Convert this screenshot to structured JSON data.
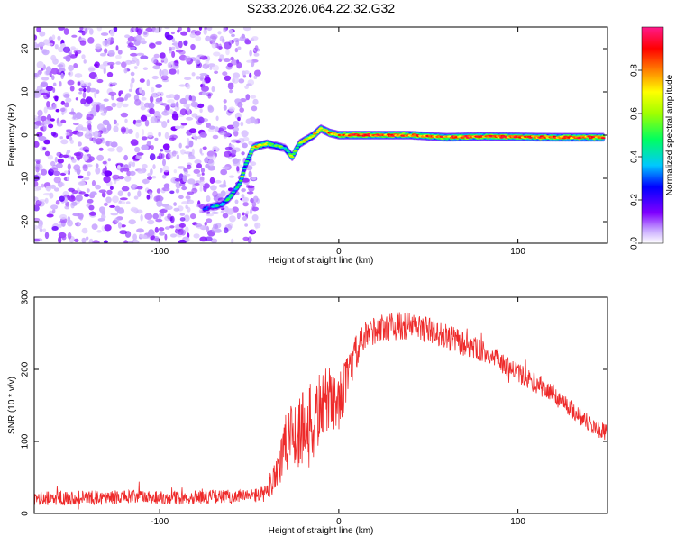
{
  "title": "S233.2026.064.22.32.G32",
  "chart_data": [
    {
      "type": "heatmap",
      "title": "S233.2026.064.22.32.G32",
      "xlabel": "Height of straight line (km)",
      "ylabel": "Frequency (Hz)",
      "xlim": [
        -170,
        150
      ],
      "ylim": [
        -25,
        25
      ],
      "x_ticks": [
        -100,
        0,
        100
      ],
      "y_ticks": [
        -20,
        -10,
        0,
        10,
        20
      ],
      "noise_region_x": [
        -170,
        -45
      ],
      "ridge": {
        "x": [
          -75,
          -70,
          -65,
          -60,
          -55,
          -52,
          -50,
          -48,
          -45,
          -40,
          -35,
          -30,
          -26,
          -22,
          -18,
          -14,
          -10,
          -5,
          0,
          10,
          20,
          40,
          60,
          80,
          100,
          120,
          148
        ],
        "y": [
          -17,
          -16.5,
          -16,
          -14,
          -11,
          -7,
          -5,
          -3,
          -2.5,
          -2,
          -2.5,
          -3,
          -5,
          -2,
          -1,
          0,
          1.5,
          0.5,
          0,
          0,
          0,
          0,
          -0.5,
          -0.3,
          -0.4,
          -0.5,
          -0.5
        ],
        "amplitude": [
          0.25,
          0.35,
          0.4,
          0.45,
          0.5,
          0.5,
          0.55,
          0.6,
          0.85,
          0.6,
          0.55,
          0.5,
          0.55,
          0.6,
          0.7,
          0.75,
          0.7,
          0.8,
          0.8,
          0.95,
          0.9,
          0.85,
          0.85,
          0.9,
          0.9,
          0.85,
          0.9
        ]
      },
      "colorbar": {
        "label": "Normalized spectral amplitude",
        "range": [
          0,
          1
        ],
        "ticks": [
          0.0,
          0.2,
          0.4,
          0.6,
          0.8
        ]
      }
    },
    {
      "type": "line",
      "xlabel": "Height of straight line (km)",
      "ylabel": "SNR (10 * v/v)",
      "xlim": [
        -170,
        150
      ],
      "ylim": [
        0,
        300
      ],
      "x_ticks": [
        -100,
        0,
        100
      ],
      "y_ticks": [
        0,
        100,
        200,
        300
      ],
      "color": "#ee2a2a",
      "series": [
        {
          "name": "SNR",
          "x": [
            -170,
            -150,
            -130,
            -110,
            -90,
            -70,
            -50,
            -40,
            -35,
            -30,
            -25,
            -20,
            -15,
            -10,
            -5,
            0,
            5,
            10,
            15,
            20,
            30,
            40,
            50,
            60,
            70,
            80,
            90,
            100,
            110,
            120,
            130,
            140,
            150
          ],
          "y": [
            20,
            22,
            22,
            23,
            22,
            23,
            24,
            28,
            60,
            90,
            115,
            120,
            120,
            150,
            160,
            155,
            190,
            225,
            245,
            255,
            260,
            260,
            255,
            245,
            235,
            225,
            210,
            195,
            180,
            165,
            145,
            125,
            110
          ],
          "noise": [
            10,
            10,
            10,
            10,
            10,
            10,
            10,
            12,
            35,
            45,
            55,
            60,
            60,
            50,
            45,
            40,
            30,
            25,
            22,
            20,
            20,
            20,
            18,
            18,
            18,
            15,
            15,
            14,
            14,
            14,
            13,
            13,
            12
          ]
        }
      ]
    }
  ]
}
